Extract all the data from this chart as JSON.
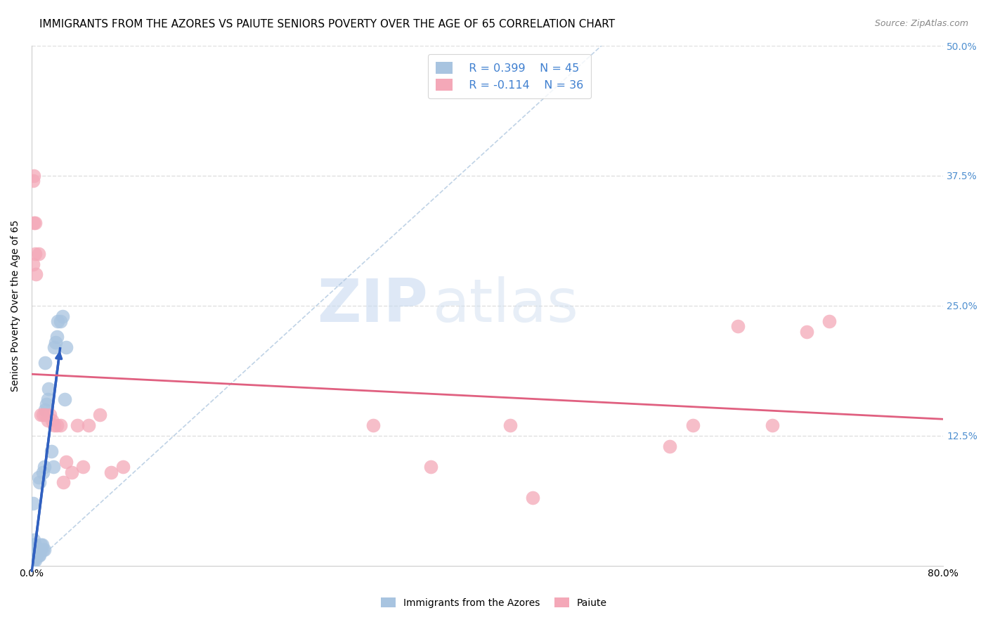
{
  "title": "IMMIGRANTS FROM THE AZORES VS PAIUTE SENIORS POVERTY OVER THE AGE OF 65 CORRELATION CHART",
  "source": "Source: ZipAtlas.com",
  "ylabel": "Seniors Poverty Over the Age of 65",
  "xlim": [
    0,
    0.8
  ],
  "ylim": [
    0,
    0.5
  ],
  "xticks": [
    0.0,
    0.1,
    0.2,
    0.3,
    0.4,
    0.5,
    0.6,
    0.7,
    0.8
  ],
  "xticklabels": [
    "0.0%",
    "",
    "",
    "",
    "",
    "",
    "",
    "",
    "80.0%"
  ],
  "yticks": [
    0.0,
    0.125,
    0.25,
    0.375,
    0.5
  ],
  "yticklabels": [
    "",
    "12.5%",
    "25.0%",
    "37.5%",
    "50.0%"
  ],
  "blue_color": "#a8c4e0",
  "pink_color": "#f4a8b8",
  "blue_line_color": "#3060c0",
  "pink_line_color": "#e06080",
  "dashed_line_color": "#b0c8e0",
  "watermark_zip": "ZIP",
  "watermark_atlas": "atlas",
  "legend_R_blue": "R = 0.399",
  "legend_N_blue": "N = 45",
  "legend_R_pink": "R = -0.114",
  "legend_N_pink": "N = 36",
  "blue_points_x": [
    0.001,
    0.001,
    0.001,
    0.001,
    0.001,
    0.002,
    0.002,
    0.002,
    0.002,
    0.002,
    0.003,
    0.003,
    0.003,
    0.003,
    0.004,
    0.004,
    0.005,
    0.005,
    0.006,
    0.006,
    0.007,
    0.007,
    0.007,
    0.008,
    0.008,
    0.009,
    0.01,
    0.01,
    0.011,
    0.011,
    0.012,
    0.012,
    0.013,
    0.014,
    0.015,
    0.017,
    0.019,
    0.02,
    0.021,
    0.022,
    0.023,
    0.025,
    0.027,
    0.029,
    0.03
  ],
  "blue_points_y": [
    0.005,
    0.01,
    0.015,
    0.02,
    0.06,
    0.005,
    0.01,
    0.015,
    0.02,
    0.025,
    0.005,
    0.01,
    0.015,
    0.02,
    0.01,
    0.015,
    0.01,
    0.015,
    0.01,
    0.085,
    0.01,
    0.015,
    0.08,
    0.015,
    0.02,
    0.02,
    0.015,
    0.09,
    0.015,
    0.095,
    0.15,
    0.195,
    0.155,
    0.16,
    0.17,
    0.11,
    0.095,
    0.21,
    0.215,
    0.22,
    0.235,
    0.235,
    0.24,
    0.16,
    0.21
  ],
  "pink_points_x": [
    0.001,
    0.001,
    0.002,
    0.002,
    0.003,
    0.003,
    0.004,
    0.006,
    0.008,
    0.01,
    0.012,
    0.014,
    0.016,
    0.018,
    0.02,
    0.022,
    0.025,
    0.028,
    0.03,
    0.035,
    0.04,
    0.045,
    0.05,
    0.06,
    0.07,
    0.08,
    0.3,
    0.35,
    0.42,
    0.44,
    0.56,
    0.58,
    0.62,
    0.65,
    0.68,
    0.7
  ],
  "pink_points_y": [
    0.29,
    0.37,
    0.33,
    0.375,
    0.3,
    0.33,
    0.28,
    0.3,
    0.145,
    0.145,
    0.145,
    0.14,
    0.145,
    0.14,
    0.135,
    0.135,
    0.135,
    0.08,
    0.1,
    0.09,
    0.135,
    0.095,
    0.135,
    0.145,
    0.09,
    0.095,
    0.135,
    0.095,
    0.135,
    0.065,
    0.115,
    0.135,
    0.23,
    0.135,
    0.225,
    0.235
  ],
  "grid_color": "#e0e0e0",
  "title_fontsize": 11,
  "axis_label_fontsize": 10,
  "tick_fontsize": 10,
  "right_tick_color": "#5090d0",
  "blue_line_x_start": 0.0,
  "blue_line_x_end": 0.025,
  "pink_line_x_start": 0.0,
  "pink_line_x_end": 0.8
}
